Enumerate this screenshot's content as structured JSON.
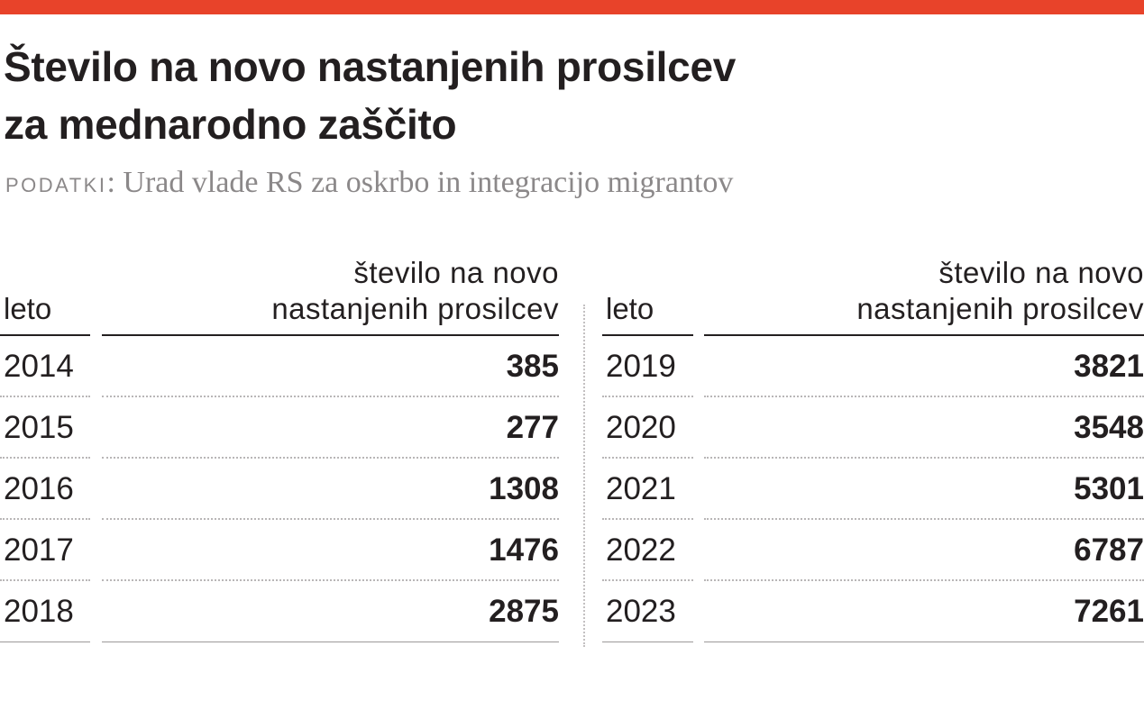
{
  "header": {
    "accent_color": "#e8432a",
    "title_line1": "Število na novo nastanjenih prosilcev",
    "title_line2": "za mednarodno zaščito",
    "source_label": "PODATKI",
    "source_text": ": Urad vlade RS za oskrbo in integracijo migrantov"
  },
  "table": {
    "col_year": "leto",
    "col_value_line1": "število na novo",
    "col_value_line2": "nastanjenih prosilcev"
  },
  "chart_data": {
    "type": "table",
    "title": "Število na novo nastanjenih prosilcev za mednarodno zaščito",
    "source": "PODATKI: Urad vlade RS za oskrbo in integracijo migrantov",
    "columns": [
      "leto",
      "število na novo nastanjenih prosilcev"
    ],
    "left_rows": [
      {
        "year": "2014",
        "value": "385"
      },
      {
        "year": "2015",
        "value": "277"
      },
      {
        "year": "2016",
        "value": "1308"
      },
      {
        "year": "2017",
        "value": "1476"
      },
      {
        "year": "2018",
        "value": "2875"
      }
    ],
    "right_rows": [
      {
        "year": "2019",
        "value": "3821"
      },
      {
        "year": "2020",
        "value": "3548"
      },
      {
        "year": "2021",
        "value": "5301"
      },
      {
        "year": "2022",
        "value": "6787"
      },
      {
        "year": "2023",
        "value": "7261"
      }
    ]
  }
}
